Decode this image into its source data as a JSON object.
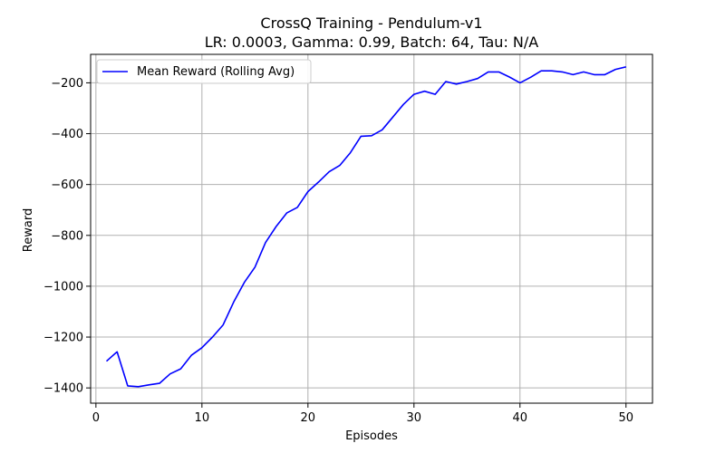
{
  "chart_data": {
    "type": "line",
    "title": "CrossQ Training - Pendulum-v1",
    "subtitle": "LR: 0.0003, Gamma: 0.99, Batch: 64, Tau: N/A",
    "xlabel": "Episodes",
    "ylabel": "Reward",
    "xlim": [
      -0.5,
      52.5
    ],
    "ylim": [
      -1460,
      -88
    ],
    "xticks": [
      0,
      10,
      20,
      30,
      40,
      50
    ],
    "yticks": [
      -1400,
      -1200,
      -1000,
      -800,
      -600,
      -400,
      -200
    ],
    "xtick_labels": [
      "0",
      "10",
      "20",
      "30",
      "40",
      "50"
    ],
    "ytick_labels": [
      "−1400",
      "−1200",
      "−1000",
      "−800",
      "−600",
      "−400",
      "−200"
    ],
    "grid": true,
    "legend_position": "top-left",
    "series": [
      {
        "name": "Mean Reward (Rolling Avg)",
        "color": "#0000ff",
        "x": [
          1,
          2,
          3,
          4,
          5,
          6,
          7,
          8,
          9,
          10,
          11,
          12,
          13,
          14,
          15,
          16,
          17,
          18,
          19,
          20,
          21,
          22,
          23,
          24,
          25,
          26,
          27,
          28,
          29,
          30,
          31,
          32,
          33,
          34,
          35,
          36,
          37,
          38,
          39,
          40,
          41,
          42,
          43,
          44,
          45,
          46,
          47,
          48,
          49,
          50
        ],
        "y": [
          -1295,
          -1258,
          -1392,
          -1395,
          -1388,
          -1382,
          -1345,
          -1325,
          -1272,
          -1242,
          -1200,
          -1152,
          -1062,
          -985,
          -925,
          -828,
          -765,
          -712,
          -690,
          -628,
          -590,
          -550,
          -525,
          -475,
          -410,
          -408,
          -385,
          -335,
          -285,
          -245,
          -233,
          -245,
          -195,
          -205,
          -195,
          -183,
          -157,
          -157,
          -177,
          -200,
          -178,
          -153,
          -153,
          -157,
          -168,
          -157,
          -168,
          -168,
          -147,
          -137
        ]
      }
    ]
  }
}
